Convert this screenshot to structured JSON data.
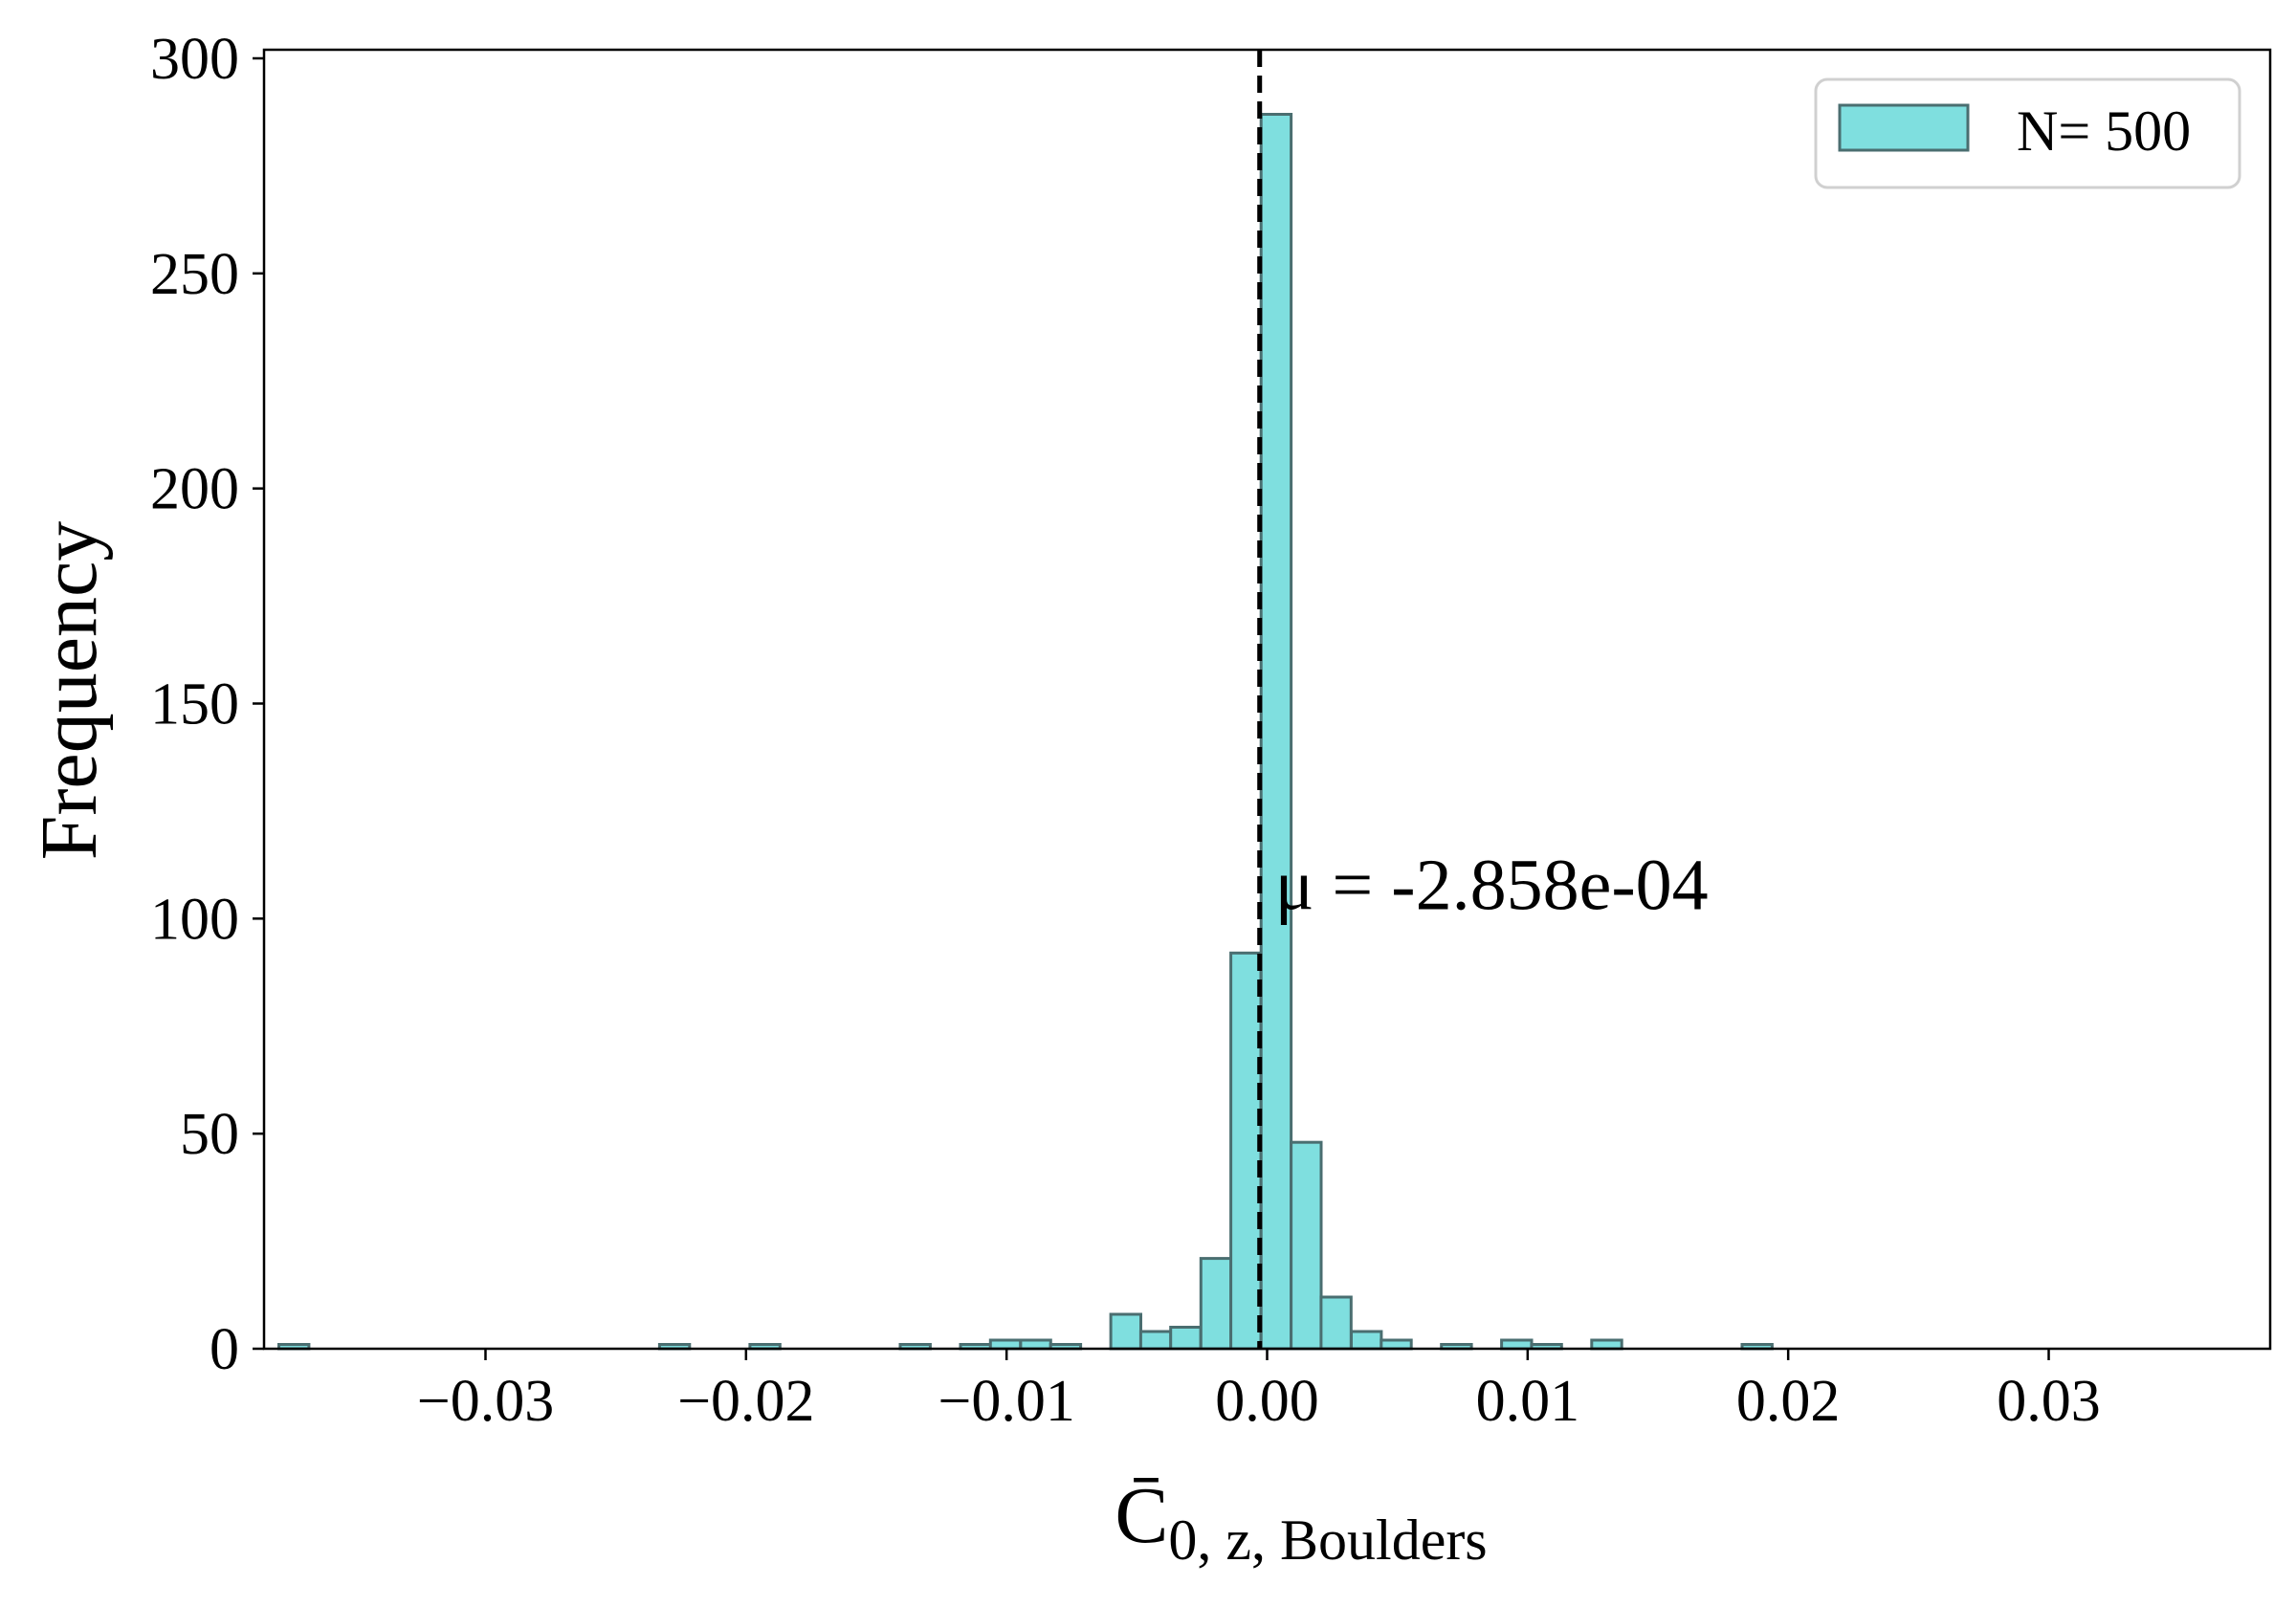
{
  "chart_data": {
    "type": "bar",
    "histogram": true,
    "xlabel": {
      "main": "C̄",
      "subscript": "0, z, Boulders"
    },
    "ylabel": "Frequency",
    "xlim": [
      -0.0385,
      0.0385
    ],
    "ylim": [
      0,
      302
    ],
    "xticks": [
      -0.03,
      -0.02,
      -0.01,
      0.0,
      0.01,
      0.02,
      0.03
    ],
    "xtick_labels": [
      "−0.03",
      "−0.02",
      "−0.01",
      "0.00",
      "0.01",
      "0.02",
      "0.03"
    ],
    "yticks": [
      0,
      50,
      100,
      150,
      200,
      250,
      300
    ],
    "ytick_labels": [
      "0",
      "50",
      "100",
      "150",
      "200",
      "250",
      "300"
    ],
    "bin_width": 0.001153,
    "bins": [
      {
        "x": -0.03793,
        "count": 1
      },
      {
        "x": -0.02332,
        "count": 1
      },
      {
        "x": -0.01985,
        "count": 1
      },
      {
        "x": -0.01408,
        "count": 1
      },
      {
        "x": -0.01177,
        "count": 1
      },
      {
        "x": -0.01062,
        "count": 2
      },
      {
        "x": -0.00946,
        "count": 2
      },
      {
        "x": -0.00831,
        "count": 1
      },
      {
        "x": -0.006,
        "count": 8
      },
      {
        "x": -0.00485,
        "count": 4
      },
      {
        "x": -0.0037,
        "count": 5
      },
      {
        "x": -0.00254,
        "count": 21
      },
      {
        "x": -0.00139,
        "count": 92
      },
      {
        "x": -0.00023,
        "count": 287
      },
      {
        "x": 0.00092,
        "count": 48
      },
      {
        "x": 0.00207,
        "count": 12
      },
      {
        "x": 0.00323,
        "count": 4
      },
      {
        "x": 0.00438,
        "count": 2
      },
      {
        "x": 0.00669,
        "count": 1
      },
      {
        "x": 0.009,
        "count": 2
      },
      {
        "x": 0.01015,
        "count": 1
      },
      {
        "x": 0.01246,
        "count": 2
      },
      {
        "x": 0.01823,
        "count": 1
      }
    ],
    "mean_line": {
      "x": -0.0002858,
      "style": "dashed",
      "color": "#000000"
    },
    "annotation": {
      "text": "μ = -2.858e-04",
      "x": 0.0003,
      "y": 100
    },
    "legend": {
      "position": "top-right",
      "entries": [
        {
          "label": "N= 500",
          "color": "#7fdfdf"
        }
      ]
    },
    "bar_color": "#7fdfdf",
    "bar_edge_color": "#4a6e70",
    "grid": false
  }
}
